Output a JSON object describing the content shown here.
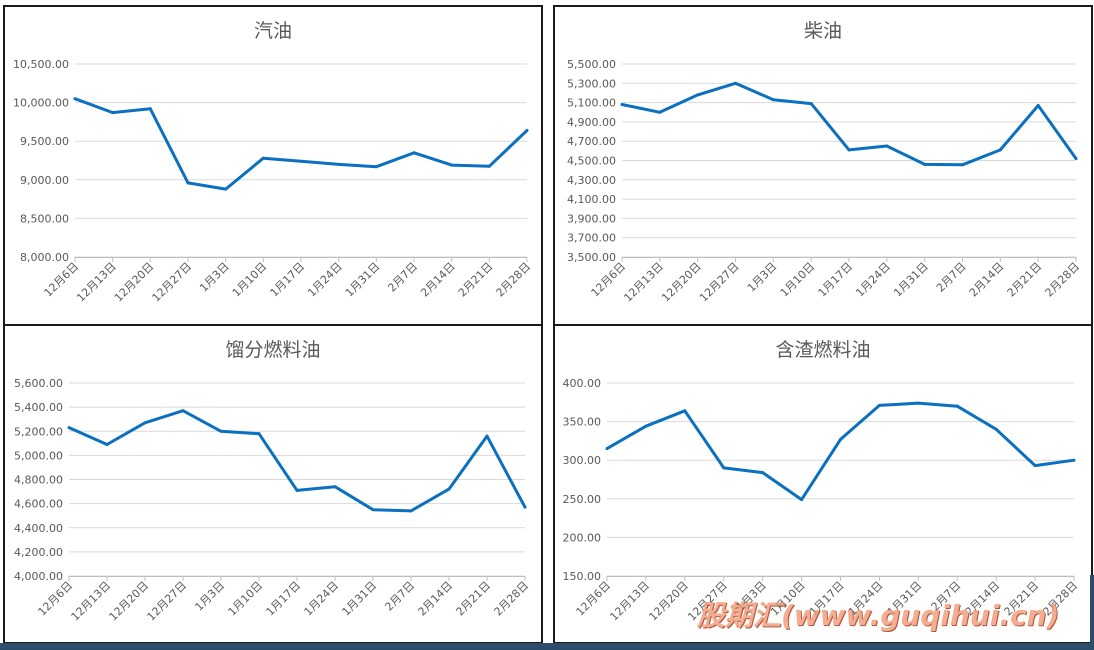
{
  "chart_data": [
    {
      "type": "line",
      "title": "汽油",
      "categories": [
        "12月6日",
        "12月13日",
        "12月20日",
        "12月27日",
        "1月3日",
        "1月10日",
        "1月17日",
        "1月24日",
        "1月31日",
        "2月7日",
        "2月14日",
        "2月21日",
        "2月28日"
      ],
      "yticks": [
        "8,000.00",
        "8,500.00",
        "9,000.00",
        "9,500.00",
        "10,000.00",
        "10,500.00"
      ],
      "ylim": [
        8000,
        10500
      ],
      "grid": true,
      "values": [
        10050,
        9870,
        9920,
        8960,
        8880,
        9280,
        9240,
        9200,
        9170,
        9350,
        9190,
        9175,
        9640
      ],
      "color": "#0a70bf"
    },
    {
      "type": "line",
      "title": "柴油",
      "categories": [
        "12月6日",
        "12月13日",
        "12月20日",
        "12月27日",
        "1月3日",
        "1月10日",
        "1月17日",
        "1月24日",
        "1月31日",
        "2月7日",
        "2月14日",
        "2月21日",
        "2月28日"
      ],
      "yticks": [
        "3,500.00",
        "3,700.00",
        "3,900.00",
        "4,100.00",
        "4,300.00",
        "4,500.00",
        "4,700.00",
        "4,900.00",
        "5,100.00",
        "5,300.00",
        "5,500.00"
      ],
      "ylim": [
        3500,
        5500
      ],
      "grid": true,
      "values": [
        5080,
        5000,
        5180,
        5300,
        5130,
        5090,
        4610,
        4650,
        4460,
        4455,
        4610,
        5070,
        4520
      ],
      "color": "#0a70bf"
    },
    {
      "type": "line",
      "title": "馏分燃料油",
      "categories": [
        "12月6日",
        "12月13日",
        "12月20日",
        "12月27日",
        "1月3日",
        "1月10日",
        "1月17日",
        "1月24日",
        "1月31日",
        "2月7日",
        "2月14日",
        "2月21日",
        "2月28日"
      ],
      "yticks": [
        "4,000.00",
        "4,200.00",
        "4,400.00",
        "4,600.00",
        "4,800.00",
        "5,000.00",
        "5,200.00",
        "5,400.00",
        "5,600.00"
      ],
      "ylim": [
        4000,
        5600
      ],
      "grid": true,
      "values": [
        5230,
        5090,
        5270,
        5370,
        5200,
        5180,
        4710,
        4740,
        4550,
        4540,
        4720,
        5160,
        4570
      ],
      "color": "#0a70bf"
    },
    {
      "type": "line",
      "title": "含渣燃料油",
      "categories": [
        "12月6日",
        "12月13日",
        "12月20日",
        "12月27日",
        "1月3日",
        "1月10日",
        "1月17日",
        "1月24日",
        "1月31日",
        "2月7日",
        "2月14日",
        "2月21日",
        "2月28日"
      ],
      "yticks": [
        "150.00",
        "200.00",
        "250.00",
        "300.00",
        "350.00",
        "400.00"
      ],
      "ylim": [
        150,
        400
      ],
      "grid": true,
      "values": [
        315,
        344,
        364,
        290,
        284,
        249,
        327,
        371,
        374,
        370,
        340,
        293,
        300
      ],
      "color": "#0a70bf"
    }
  ],
  "watermark": {
    "text": "股期汇(www.guqihui.cn)"
  }
}
